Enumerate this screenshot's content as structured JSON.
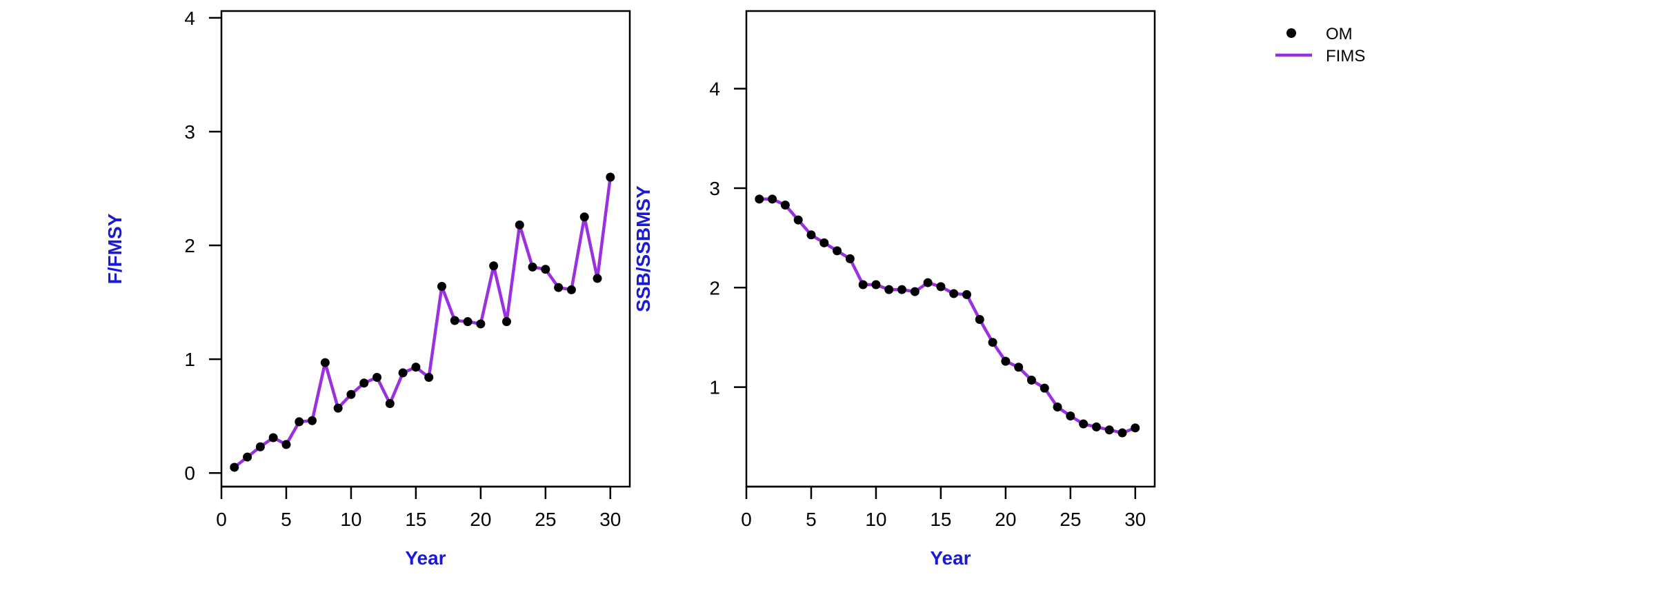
{
  "colors": {
    "axis_title": "#1a1ad6",
    "om_points": "#000000",
    "fims_line": "#9b30e0",
    "frame": "#000000"
  },
  "legend": {
    "items": [
      {
        "label": "OM",
        "type": "point",
        "color": "#000000"
      },
      {
        "label": "FIMS",
        "type": "line",
        "color": "#9b30e0"
      }
    ]
  },
  "chart_data": [
    {
      "type": "line",
      "title": "",
      "xlabel": "Year",
      "ylabel": "F/FMSY",
      "xlim": [
        0,
        31.5
      ],
      "ylim": [
        -0.12,
        4.06
      ],
      "xticks": [
        0,
        5,
        10,
        15,
        20,
        25,
        30
      ],
      "yticks": [
        0,
        1,
        2,
        3,
        4
      ],
      "grid": false,
      "x": [
        1,
        2,
        3,
        4,
        5,
        6,
        7,
        8,
        9,
        10,
        11,
        12,
        13,
        14,
        15,
        16,
        17,
        18,
        19,
        20,
        21,
        22,
        23,
        24,
        25,
        26,
        27,
        28,
        29,
        30
      ],
      "series": [
        {
          "name": "OM",
          "style": "points",
          "values": [
            0.05,
            0.14,
            0.23,
            0.31,
            0.25,
            0.45,
            0.46,
            0.97,
            0.57,
            0.69,
            0.79,
            0.84,
            0.61,
            0.88,
            0.93,
            0.84,
            1.64,
            1.34,
            1.33,
            1.31,
            1.82,
            1.33,
            2.18,
            1.81,
            1.79,
            1.63,
            1.61,
            2.25,
            1.71,
            2.6
          ]
        },
        {
          "name": "FIMS",
          "style": "line",
          "values": [
            0.05,
            0.14,
            0.23,
            0.31,
            0.25,
            0.45,
            0.46,
            0.97,
            0.57,
            0.69,
            0.79,
            0.84,
            0.61,
            0.88,
            0.93,
            0.84,
            1.64,
            1.34,
            1.33,
            1.31,
            1.82,
            1.33,
            2.18,
            1.81,
            1.79,
            1.63,
            1.61,
            2.25,
            1.71,
            2.6
          ]
        }
      ]
    },
    {
      "type": "line",
      "title": "",
      "xlabel": "Year",
      "ylabel": "SSB/SSBMSY",
      "xlim": [
        0,
        31.5
      ],
      "ylim": [
        0,
        4.78
      ],
      "xticks": [
        0,
        5,
        10,
        15,
        20,
        25,
        30
      ],
      "yticks": [
        1,
        2,
        3,
        4
      ],
      "grid": false,
      "x": [
        1,
        2,
        3,
        4,
        5,
        6,
        7,
        8,
        9,
        10,
        11,
        12,
        13,
        14,
        15,
        16,
        17,
        18,
        19,
        20,
        21,
        22,
        23,
        24,
        25,
        26,
        27,
        28,
        29,
        30
      ],
      "series": [
        {
          "name": "OM",
          "style": "points",
          "values": [
            2.89,
            2.89,
            2.83,
            2.68,
            2.53,
            2.45,
            2.37,
            2.29,
            2.03,
            2.03,
            1.98,
            1.98,
            1.96,
            2.05,
            2.01,
            1.94,
            1.93,
            1.68,
            1.45,
            1.26,
            1.2,
            1.07,
            0.99,
            0.8,
            0.71,
            0.63,
            0.6,
            0.57,
            0.54,
            0.59
          ]
        },
        {
          "name": "FIMS",
          "style": "line",
          "values": [
            2.89,
            2.89,
            2.83,
            2.68,
            2.53,
            2.45,
            2.37,
            2.29,
            2.03,
            2.03,
            1.98,
            1.98,
            1.96,
            2.05,
            2.01,
            1.94,
            1.93,
            1.68,
            1.45,
            1.26,
            1.2,
            1.07,
            0.99,
            0.8,
            0.71,
            0.63,
            0.6,
            0.57,
            0.54,
            0.59
          ]
        }
      ]
    }
  ]
}
